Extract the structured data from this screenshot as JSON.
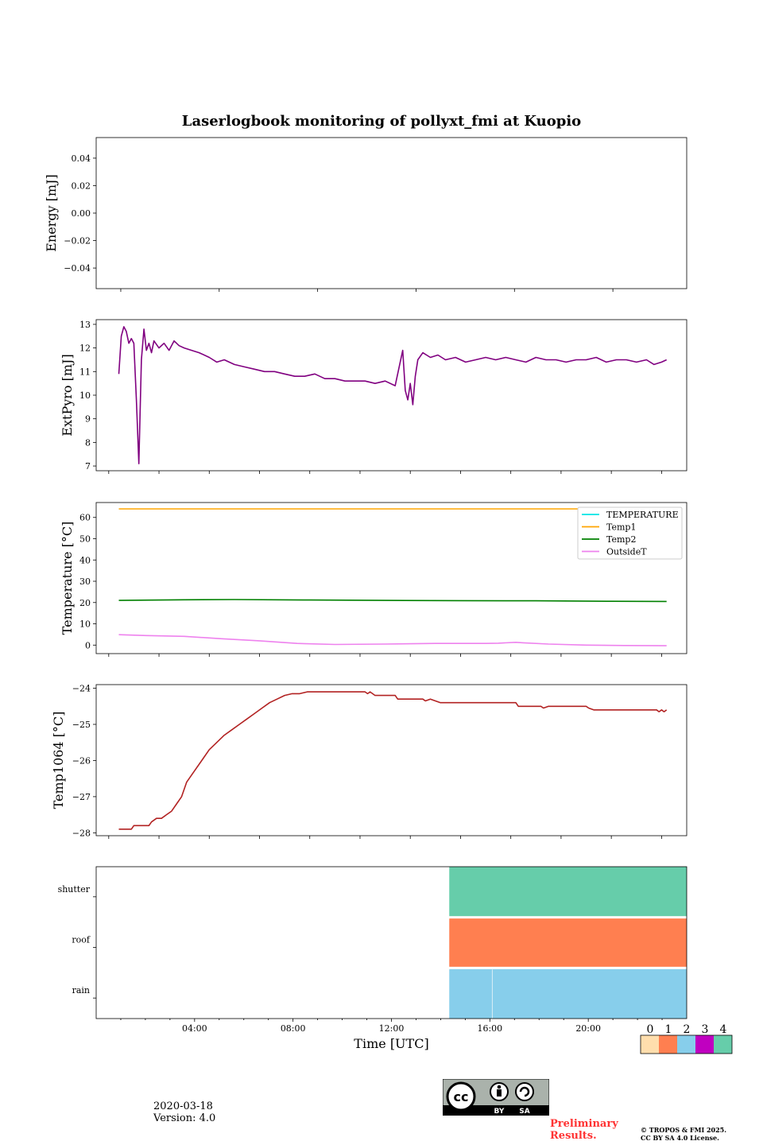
{
  "title": "Laserlogbook monitoring of pollyxt_fmi at Kuopio",
  "footer": {
    "date": "2020-03-18",
    "version": "Version: 4.0",
    "preliminary": "Preliminary Results.",
    "preliminary_line1": "Preliminary",
    "preliminary_line2": "Results.",
    "copyright_line1": "© TROPOS & FMI 2025.",
    "copyright_line2": "CC BY SA 4.0 License.",
    "cc_by": "BY",
    "cc_sa": "SA"
  },
  "colors": {
    "extpyro": "#800080",
    "temperature": "#00e5e5",
    "temp1": "#ffa500",
    "temp2": "#008000",
    "outsideT": "#ee82ee",
    "temp1064": "#b22222",
    "status0": "#ffdead",
    "status1": "#ff7f50",
    "status2": "#87ceeb",
    "status3": "#c000c0",
    "status4": "#66cdaa"
  },
  "chart_data": [
    {
      "type": "line",
      "id": "energy",
      "ylabel": "Energy [mJ]",
      "ylim": [
        -0.055,
        0.055
      ],
      "yticks": [
        -0.04,
        -0.02,
        0.0,
        0.02,
        0.04
      ],
      "ytick_labels": [
        "−0.04",
        "−0.02",
        "0.00",
        "0.02",
        "0.04"
      ],
      "xlim": [
        -1.0,
        23.0
      ],
      "series": []
    },
    {
      "type": "line",
      "id": "extpyro",
      "ylabel": "ExtPyro [mJ]",
      "ylim": [
        6.8,
        13.2
      ],
      "yticks": [
        7,
        8,
        9,
        10,
        11,
        12,
        13
      ],
      "ytick_labels": [
        "7",
        "8",
        "9",
        "10",
        "11",
        "12",
        "13"
      ],
      "xlim": [
        -0.5,
        23.0
      ],
      "series": [
        {
          "name": "ExtPyro",
          "x": [
            0.4,
            0.5,
            0.6,
            0.7,
            0.8,
            0.9,
            1.0,
            1.1,
            1.2,
            1.3,
            1.4,
            1.5,
            1.6,
            1.7,
            1.8,
            2.0,
            2.2,
            2.4,
            2.6,
            2.8,
            3.0,
            3.3,
            3.6,
            4.0,
            4.3,
            4.6,
            5.0,
            5.4,
            5.8,
            6.2,
            6.6,
            7.0,
            7.4,
            7.8,
            8.2,
            8.6,
            9.0,
            9.4,
            9.8,
            10.2,
            10.6,
            11.0,
            11.4,
            11.7,
            11.8,
            11.9,
            12.0,
            12.1,
            12.2,
            12.3,
            12.5,
            12.8,
            13.1,
            13.4,
            13.8,
            14.2,
            14.6,
            15.0,
            15.4,
            15.8,
            16.2,
            16.6,
            17.0,
            17.4,
            17.8,
            18.2,
            18.6,
            19.0,
            19.4,
            19.8,
            20.2,
            20.6,
            21.0,
            21.4,
            21.7,
            22.0,
            22.2
          ],
          "values": [
            10.9,
            12.5,
            12.9,
            12.7,
            12.2,
            12.4,
            12.2,
            9.8,
            7.1,
            11.5,
            12.8,
            11.9,
            12.2,
            11.8,
            12.3,
            12.0,
            12.2,
            11.9,
            12.3,
            12.1,
            12.0,
            11.9,
            11.8,
            11.6,
            11.4,
            11.5,
            11.3,
            11.2,
            11.1,
            11.0,
            11.0,
            10.9,
            10.8,
            10.8,
            10.9,
            10.7,
            10.7,
            10.6,
            10.6,
            10.6,
            10.5,
            10.6,
            10.4,
            11.9,
            10.2,
            9.8,
            10.5,
            9.6,
            10.8,
            11.5,
            11.8,
            11.6,
            11.7,
            11.5,
            11.6,
            11.4,
            11.5,
            11.6,
            11.5,
            11.6,
            11.5,
            11.4,
            11.6,
            11.5,
            11.5,
            11.4,
            11.5,
            11.5,
            11.6,
            11.4,
            11.5,
            11.5,
            11.4,
            11.5,
            11.3,
            11.4,
            11.5
          ]
        }
      ]
    },
    {
      "type": "line",
      "id": "temperature",
      "ylabel": "Temperature [°C]",
      "ylim": [
        -4.0,
        67.0
      ],
      "yticks": [
        0,
        10,
        20,
        30,
        40,
        50,
        60
      ],
      "ytick_labels": [
        "0",
        "10",
        "20",
        "30",
        "40",
        "50",
        "60"
      ],
      "xlim": [
        -0.5,
        23.0
      ],
      "legend": "top-right",
      "series": [
        {
          "name": "TEMPERATURE",
          "x": [],
          "values": []
        },
        {
          "name": "Temp1",
          "x": [
            0.4,
            6.0,
            12.0,
            18.0,
            22.2
          ],
          "values": [
            64.0,
            64.0,
            64.0,
            64.0,
            64.0
          ]
        },
        {
          "name": "Temp2",
          "x": [
            0.4,
            3.0,
            5.0,
            8.0,
            11.0,
            14.0,
            17.0,
            20.0,
            22.2
          ],
          "values": [
            21.0,
            21.3,
            21.4,
            21.2,
            21.0,
            20.9,
            20.8,
            20.6,
            20.5
          ]
        },
        {
          "name": "OutsideT",
          "x": [
            0.4,
            1.5,
            3.0,
            4.5,
            6.0,
            7.5,
            9.0,
            11.0,
            13.0,
            15.0,
            15.5,
            16.2,
            16.5,
            17.5,
            19.0,
            20.5,
            22.2
          ],
          "values": [
            4.9,
            4.5,
            4.1,
            3.0,
            2.0,
            0.8,
            0.3,
            0.5,
            0.8,
            0.8,
            0.9,
            1.3,
            1.1,
            0.5,
            0.0,
            -0.2,
            -0.3
          ]
        }
      ]
    },
    {
      "type": "line",
      "id": "temp1064",
      "ylabel": "Temp1064 [°C]",
      "ylim": [
        -28.08,
        -23.9
      ],
      "yticks": [
        -28,
        -27,
        -26,
        -25,
        -24
      ],
      "ytick_labels": [
        "−28",
        "−27",
        "−26",
        "−25",
        "−24"
      ],
      "xlim": [
        -0.5,
        23.0
      ],
      "series": [
        {
          "name": "Temp1064",
          "x": [
            0.4,
            0.9,
            1.0,
            1.6,
            1.7,
            1.9,
            2.1,
            2.3,
            2.5,
            2.7,
            2.9,
            3.1,
            3.4,
            3.7,
            4.0,
            4.3,
            4.6,
            4.9,
            5.2,
            5.5,
            5.8,
            6.1,
            6.4,
            6.7,
            7.0,
            7.3,
            7.6,
            7.9,
            8.3,
            8.8,
            9.6,
            10.2,
            10.3,
            10.4,
            10.6,
            11.4,
            11.5,
            12.5,
            12.6,
            12.8,
            13.0,
            13.2,
            13.5,
            14.5,
            15.5,
            16.2,
            16.3,
            16.9,
            17.2,
            17.3,
            17.5,
            18.5,
            19.0,
            19.1,
            19.3,
            20.5,
            21.5,
            21.8,
            21.9,
            22.0,
            22.1,
            22.2
          ],
          "values": [
            -27.9,
            -27.9,
            -27.8,
            -27.8,
            -27.7,
            -27.6,
            -27.6,
            -27.5,
            -27.4,
            -27.2,
            -27.0,
            -26.6,
            -26.3,
            -26.0,
            -25.7,
            -25.5,
            -25.3,
            -25.15,
            -25.0,
            -24.85,
            -24.7,
            -24.55,
            -24.4,
            -24.3,
            -24.2,
            -24.15,
            -24.15,
            -24.1,
            -24.1,
            -24.1,
            -24.1,
            -24.1,
            -24.15,
            -24.1,
            -24.2,
            -24.2,
            -24.3,
            -24.3,
            -24.35,
            -24.3,
            -24.35,
            -24.4,
            -24.4,
            -24.4,
            -24.4,
            -24.4,
            -24.5,
            -24.5,
            -24.5,
            -24.55,
            -24.5,
            -24.5,
            -24.5,
            -24.55,
            -24.6,
            -24.6,
            -24.6,
            -24.6,
            -24.65,
            -24.6,
            -24.65,
            -24.6
          ]
        }
      ]
    },
    {
      "type": "heatmap",
      "id": "status",
      "xlabel": "Time [UTC]",
      "xlim": [
        0.0,
        24.0
      ],
      "xticks": [
        4,
        8,
        12,
        16,
        20
      ],
      "xtick_labels": [
        "04:00",
        "08:00",
        "12:00",
        "16:00",
        "20:00"
      ],
      "rows": [
        "shutter",
        "roof",
        "rain"
      ],
      "segments": [
        {
          "row": "shutter",
          "start": 14.35,
          "end": 24.0,
          "value": 4
        },
        {
          "row": "roof",
          "start": 14.35,
          "end": 24.0,
          "value": 1
        },
        {
          "row": "rain",
          "start": 14.35,
          "end": 24.0,
          "value": 2
        }
      ],
      "colorbar": {
        "ticks": [
          "0",
          "1",
          "2",
          "3",
          "4"
        ]
      }
    }
  ]
}
